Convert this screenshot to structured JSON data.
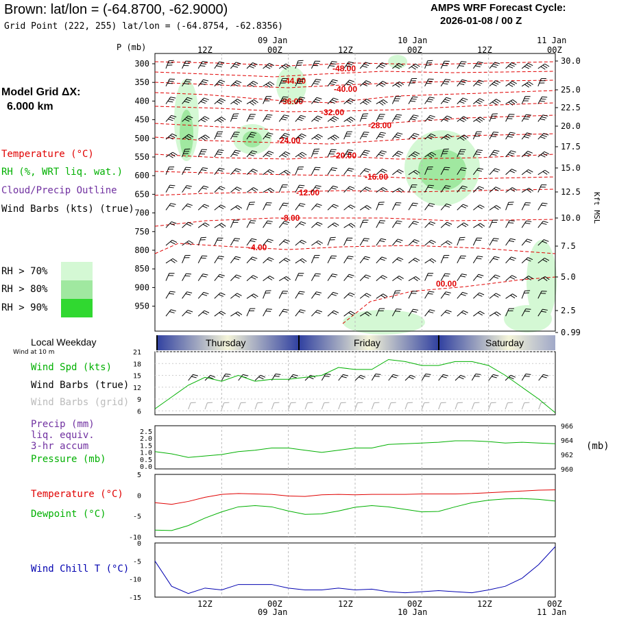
{
  "header": {
    "title": "Brown:  lat/lon = (-64.8700, -62.9000)",
    "grid_point": "Grid Point (222, 255) lat/lon = (-64.8754, -62.8356)",
    "forecast_line1": "AMPS WRF Forecast Cycle:",
    "forecast_line2": "2026-01-08 / 00  Z"
  },
  "sidebar": {
    "model_grid": "Model Grid ΔX:",
    "model_dx": "6.000 km",
    "temperature": "Temperature (°C)",
    "rh": "RH (%, WRT liq. wat.)",
    "cloud": "Cloud/Precip Outline",
    "wind": "Wind Barbs (kts) (true)",
    "rh70": "RH > 70%",
    "rh80": "RH > 80%",
    "rh90": "RH > 90%",
    "local_weekday": "Local Weekday",
    "wind10m": "Wind at 10 m",
    "wind_spd": "Wind Spd (kts)",
    "wind_barbs_true": "Wind Barbs (true)",
    "wind_barbs_grid": "Wind Barbs (grid)",
    "precip": "Precip (mm)",
    "precip2": "liq. equiv.",
    "precip3": "3-hr accum",
    "pressure": "Pressure (mb)",
    "temp2": "Temperature (°C)",
    "dewpoint": "Dewpoint (°C)",
    "windchill": "Wind Chill T (°C)",
    "mb_unit": "(mb)",
    "kft": "Kft MSL",
    "p_mb": "P (mb)"
  },
  "colors": {
    "temperature": "#e00000",
    "rh": "#00b000",
    "cloud": "#7030a0",
    "rh70": "#d4f8d4",
    "rh80": "#a0e8a0",
    "rh90": "#30d830",
    "pressure": "#00b000",
    "windchill": "#0000b0",
    "grid_barb": "#aaaaaa"
  },
  "time_axis": {
    "top_ticks": [
      "12Z",
      "00Z",
      "12Z",
      "00Z",
      "12Z",
      "00Z"
    ],
    "top_dates": [
      "09 Jan",
      "10 Jan",
      "11 Jan"
    ],
    "bottom_ticks": [
      "12Z",
      "00Z",
      "12Z",
      "00Z",
      "12Z",
      "00Z"
    ],
    "bottom_dates": [
      "09 Jan",
      "10 Jan",
      "11 Jan"
    ],
    "weekdays": [
      "Thursday",
      "Friday",
      "Saturday"
    ]
  },
  "chart_data": [
    {
      "type": "heatmap",
      "name_hint": "cross-section",
      "xlabel": "",
      "ylabel": "P (mb)",
      "y_ticks": [
        "300",
        "350",
        "400",
        "450",
        "500",
        "550",
        "600",
        "650",
        "700",
        "750",
        "800",
        "850",
        "900",
        "950"
      ],
      "y2_ticks": [
        "30.0",
        "25.0",
        "22.5",
        "20.0",
        "17.5",
        "15.0",
        "12.5",
        "10.0",
        "7.5",
        "5.0",
        "2.5",
        "0.99"
      ],
      "y2label": "Kft MSL",
      "temperature_labels": [
        "-48.00",
        "-44.00",
        "-40.00",
        "-36.00",
        "-32.00",
        "-28.00",
        "-24.00",
        "-20.00",
        "-16.00",
        "-12.00",
        "-8.00",
        "-4.00",
        "00.00"
      ],
      "rh_thresholds": [
        ">70%",
        ">80%",
        ">90%"
      ]
    },
    {
      "type": "line",
      "title": "",
      "ylabel": "Wind Spd (kts)",
      "y_ticks": [
        "21",
        "18",
        "15",
        "12",
        "9",
        "6"
      ],
      "ylim": [
        5,
        21
      ],
      "x_hours": [
        0,
        6,
        9,
        12,
        15,
        18,
        21,
        24,
        27,
        30,
        33,
        36,
        39,
        42,
        45,
        48,
        51,
        54,
        57,
        60,
        63,
        66,
        69,
        72
      ],
      "series": [
        {
          "name": "Wind Spd (kts)",
          "values": [
            6.5,
            12.5,
            14.5,
            13.5,
            15,
            13.5,
            14,
            14,
            14.5,
            15,
            17,
            16.5,
            16.5,
            19,
            18.5,
            17.5,
            17.5,
            18.5,
            18.5,
            17.5,
            15,
            12,
            9,
            5.5
          ]
        }
      ]
    },
    {
      "type": "line",
      "ylabel": "Pressure (mb)",
      "y_ticks": [
        "2.5",
        "2.0",
        "1.5",
        "1.0",
        "0.5",
        "0.0"
      ],
      "y2_ticks": [
        "966",
        "964",
        "962",
        "960"
      ],
      "ylim": [
        960,
        966
      ],
      "x_hours": [
        0,
        3,
        6,
        9,
        12,
        15,
        18,
        21,
        24,
        27,
        30,
        33,
        36,
        39,
        42,
        45,
        48,
        51,
        54,
        57,
        60,
        63,
        66,
        69,
        72
      ],
      "series": [
        {
          "name": "Pressure (mb)",
          "values": [
            962.4,
            962.1,
            961.6,
            961.8,
            962.0,
            962.4,
            962.6,
            962.9,
            962.9,
            962.6,
            962.3,
            962.6,
            962.9,
            962.9,
            963.4,
            963.5,
            963.6,
            963.7,
            963.9,
            963.9,
            963.8,
            963.6,
            963.7,
            963.6,
            963.5
          ]
        }
      ]
    },
    {
      "type": "line",
      "y_ticks": [
        "5",
        "0",
        "-5",
        "-10"
      ],
      "ylim": [
        -10,
        5
      ],
      "x_hours": [
        0,
        3,
        6,
        9,
        12,
        15,
        18,
        21,
        24,
        27,
        30,
        33,
        36,
        39,
        42,
        45,
        48,
        51,
        54,
        57,
        60,
        63,
        66,
        69,
        72
      ],
      "series": [
        {
          "name": "Temperature (°C)",
          "values": [
            -1.8,
            -2.2,
            -1.5,
            -0.5,
            0.2,
            0.4,
            0.3,
            0.2,
            -0.2,
            -0.3,
            0.1,
            0.2,
            0.1,
            0.2,
            0.2,
            0.2,
            0.3,
            0.3,
            0.3,
            0.4,
            0.6,
            0.8,
            1.0,
            1.2,
            1.3
          ]
        },
        {
          "name": "Dewpoint (°C)",
          "values": [
            -8.4,
            -8.5,
            -7.3,
            -5.5,
            -4.0,
            -2.8,
            -2.5,
            -2.8,
            -3.8,
            -4.6,
            -4.5,
            -3.8,
            -2.9,
            -2.5,
            -2.8,
            -3.4,
            -4.0,
            -3.9,
            -2.8,
            -1.8,
            -1.2,
            -0.9,
            -0.8,
            -1.0,
            -1.4
          ]
        }
      ]
    },
    {
      "type": "line",
      "y_ticks": [
        "0",
        "-5",
        "-10",
        "-15"
      ],
      "ylim": [
        -15,
        0
      ],
      "x_hours": [
        0,
        3,
        6,
        9,
        12,
        15,
        18,
        21,
        24,
        27,
        30,
        33,
        36,
        39,
        42,
        45,
        48,
        51,
        54,
        57,
        60,
        63,
        66,
        69,
        72
      ],
      "series": [
        {
          "name": "Wind Chill T (°C)",
          "values": [
            -5,
            -12,
            -14,
            -12.5,
            -13,
            -11.5,
            -11.5,
            -11.5,
            -12.5,
            -13,
            -13,
            -12.5,
            -13,
            -12.8,
            -13.5,
            -13.8,
            -13.5,
            -13.2,
            -13.5,
            -13.8,
            -13,
            -12,
            -9.8,
            -6,
            -1
          ]
        }
      ]
    }
  ]
}
